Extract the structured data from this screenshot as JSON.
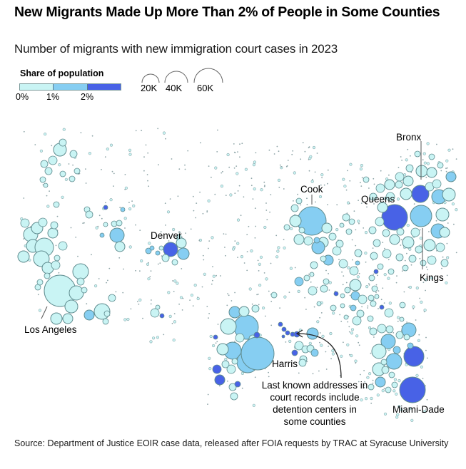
{
  "header": {
    "title": "New Migrants Made Up More Than 2% of People in Some Counties",
    "subtitle": "Number of migrants with new immigration court cases in 2023"
  },
  "legend": {
    "color_title": "Share of population",
    "color_ticks": [
      "0%",
      "1%",
      "2%"
    ],
    "color_bins": [
      {
        "range": "0–1%",
        "color": "#c9f4f4"
      },
      {
        "range": "1–2%",
        "color": "#86cef2"
      },
      {
        "range": "2%+",
        "color": "#4862e6"
      }
    ],
    "size_labels": [
      "20K",
      "40K",
      "60K"
    ],
    "size_values": [
      20000,
      40000,
      60000
    ]
  },
  "colors": {
    "low": "#c9f4f4",
    "mid": "#86cef2",
    "high": "#4862e6",
    "stroke": "#5f8c8f",
    "text": "#000000"
  },
  "labels": {
    "los_angeles": "Los Angeles",
    "denver": "Denver",
    "cook": "Cook",
    "queens": "Queens",
    "bronx": "Bronx",
    "kings": "Kings",
    "harris": "Harris",
    "miami_dade": "Miami-Dade"
  },
  "annotation": {
    "lines": [
      "Last known addresses in",
      "court records include",
      "detention centers in",
      "some counties"
    ]
  },
  "source": "Source: Department of Justice EOIR case data, released after FOIA requests by TRAC at Syracuse University",
  "chart_data": {
    "type": "scatter",
    "title": "New Migrants Made Up More Than 2% of People in Some Counties",
    "subtitle": "Number of migrants with new immigration court cases in 2023",
    "encoding": "proportional-circle map of US counties; circle area = number of migrants, fill = share of population",
    "color_scale": {
      "bins": [
        "0-1%",
        "1-2%",
        "2%+"
      ]
    },
    "size_scale": {
      "reference_values": [
        20000,
        40000,
        60000
      ]
    },
    "highlighted_counties": [
      {
        "name": "Los Angeles",
        "approx_migrants": 60000,
        "share_bin": "0-1%"
      },
      {
        "name": "Denver",
        "approx_migrants": 17000,
        "share_bin": "2%+"
      },
      {
        "name": "Cook",
        "approx_migrants": 55000,
        "share_bin": "1-2%"
      },
      {
        "name": "Queens",
        "approx_migrants": 47000,
        "share_bin": "2%+"
      },
      {
        "name": "Bronx",
        "approx_migrants": 25000,
        "share_bin": "2%+"
      },
      {
        "name": "Kings",
        "approx_migrants": 55000,
        "share_bin": "1-2%"
      },
      {
        "name": "Harris",
        "approx_migrants": 68000,
        "share_bin": "1-2%"
      },
      {
        "name": "Miami-Dade",
        "approx_migrants": 40000,
        "share_bin": "2%+"
      }
    ]
  }
}
